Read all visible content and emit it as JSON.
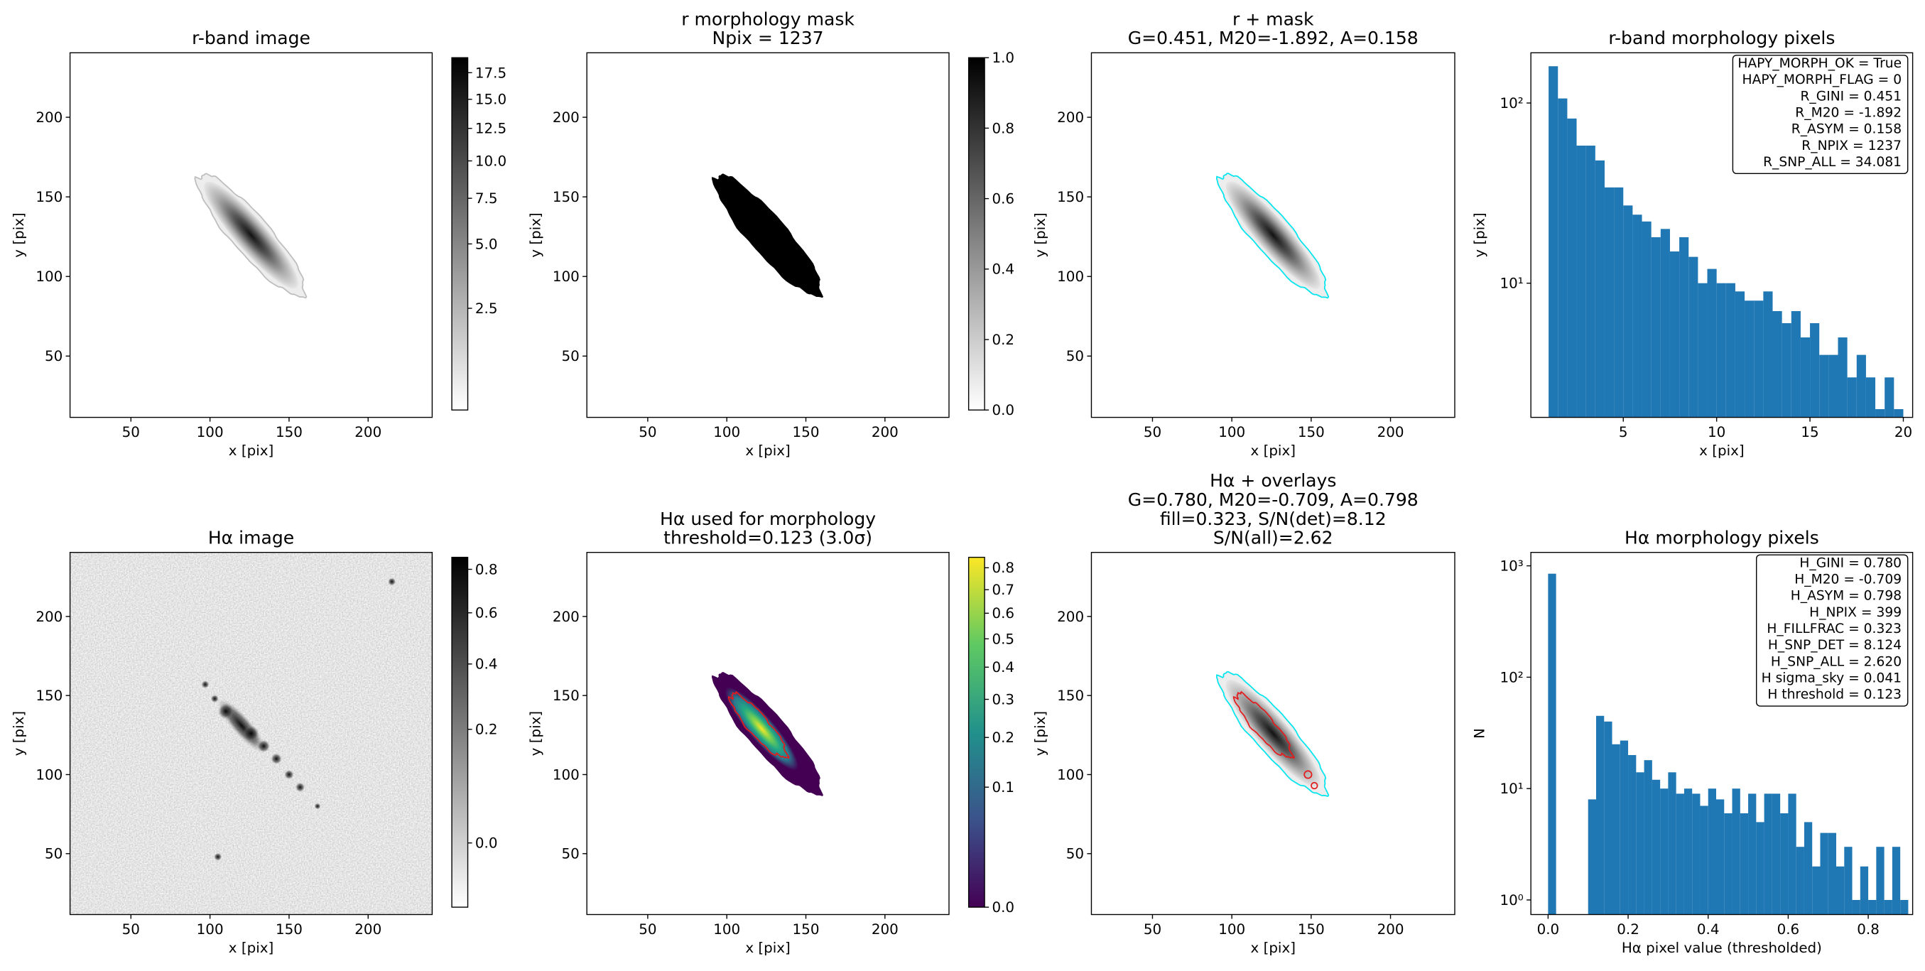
{
  "chart_data": [
    {
      "type": "image",
      "title": [
        "r-band image"
      ],
      "xlabel": "x [pix]",
      "ylabel": "y [pix]",
      "xlim": [
        11.5,
        240.5
      ],
      "ylim": [
        11.5,
        240.5
      ],
      "xticks": [
        50,
        100,
        150,
        200
      ],
      "yticks": [
        50,
        100,
        150,
        200
      ],
      "colorbar": {
        "cmap": "gray_r",
        "scale": "sqrt",
        "clim": [
          1,
          19
        ],
        "ticks": [
          2.5,
          {
            "value": 5,
            "label": "5.0"
          },
          7.5,
          {
            "value": 10,
            "label": "10.0"
          },
          12.5,
          {
            "value": 15,
            "label": "15.0"
          },
          17.5
        ]
      }
    },
    {
      "type": "image",
      "title": [
        "r morphology mask",
        "Npix = 1237"
      ],
      "xlabel": "x [pix]",
      "ylabel": "y [pix]",
      "xlim": [
        11.5,
        240.5
      ],
      "ylim": [
        11.5,
        240.5
      ],
      "xticks": [
        50,
        100,
        150,
        200
      ],
      "yticks": [
        50,
        100,
        150,
        200
      ],
      "colorbar": {
        "cmap": "gray_r",
        "scale": "linear",
        "clim": [
          0,
          1
        ],
        "ticks": [
          {
            "value": 0,
            "label": "0.0"
          },
          0.2,
          0.4,
          0.6,
          0.8,
          {
            "value": 1,
            "label": "1.0"
          }
        ]
      }
    },
    {
      "type": "image",
      "title": [
        "r + mask",
        "G=0.451, M20=-1.892, A=0.158"
      ],
      "xlabel": "x [pix]",
      "ylabel": "y [pix]",
      "xlim": [
        11.5,
        240.5
      ],
      "ylim": [
        11.5,
        240.5
      ],
      "xticks": [
        50,
        100,
        150,
        200
      ],
      "yticks": [
        50,
        100,
        150,
        200
      ]
    },
    {
      "type": "histogram",
      "title": [
        "r-band morphology pixels"
      ],
      "xlabel": "x [pix]",
      "ylabel": "y [pix]",
      "bins": [
        1,
        1.5,
        2,
        2.5,
        3,
        3.5,
        4,
        4.5,
        5,
        5.5,
        6,
        6.5,
        7,
        7.5,
        8,
        8.5,
        9,
        9.5,
        10,
        10.5,
        11,
        11.5,
        12,
        12.5,
        13,
        13.5,
        14,
        14.5,
        15,
        15.5,
        16,
        16.5,
        17,
        17.5,
        18,
        18.5,
        19,
        19.5,
        20
      ],
      "values": [
        160,
        106,
        82,
        58,
        58,
        48,
        34,
        34,
        27,
        24,
        22,
        18,
        20,
        15,
        18,
        14,
        10,
        12,
        10,
        10,
        9,
        8,
        8,
        9,
        7,
        6,
        7,
        5,
        6,
        4,
        4,
        5,
        3,
        4,
        3,
        2,
        3,
        2
      ],
      "color": "#1f77b4",
      "log_y": true,
      "xlim": [
        0.05,
        20.5
      ],
      "ylim": [
        1.8,
        190
      ],
      "xticks": [
        5,
        10,
        15,
        20
      ],
      "yticks": [
        {
          "value": 10,
          "label": "10¹"
        },
        {
          "value": 100,
          "label": "10²"
        }
      ],
      "annotation": [
        "HAPY_MORPH_OK = True",
        "HAPY_MORPH_FLAG = 0",
        "R_GINI = 0.451",
        "R_M20 = -1.892",
        "R_ASYM = 0.158",
        "R_NPIX = 1237",
        "R_SNP_ALL = 34.081"
      ]
    },
    {
      "type": "image",
      "title": [
        "Hα image"
      ],
      "xlabel": "x [pix]",
      "ylabel": "y [pix]",
      "xlim": [
        11.5,
        240.5
      ],
      "ylim": [
        11.5,
        240.5
      ],
      "xticks": [
        50,
        100,
        150,
        200
      ],
      "yticks": [
        50,
        100,
        150,
        200
      ],
      "colorbar": {
        "cmap": "gray_r",
        "scale": "sqrt",
        "clim": [
          -0.03,
          0.86
        ],
        "ticks": [
          {
            "value": 0,
            "label": "0.0"
          },
          0.2,
          0.4,
          0.6,
          0.8
        ]
      }
    },
    {
      "type": "image",
      "title": [
        "Hα used for morphology",
        "threshold=0.123 (3.0σ)"
      ],
      "xlabel": "x [pix]",
      "ylabel": "y [pix]",
      "xlim": [
        11.5,
        240.5
      ],
      "ylim": [
        11.5,
        240.5
      ],
      "xticks": [
        50,
        100,
        150,
        200
      ],
      "yticks": [
        50,
        100,
        150,
        200
      ],
      "colorbar": {
        "cmap": "viridis",
        "scale": "sqrt",
        "clim": [
          0,
          0.85
        ],
        "ticks": [
          {
            "value": 0,
            "label": "0.0"
          },
          0.1,
          0.2,
          0.3,
          0.4,
          0.5,
          0.6,
          0.7,
          0.8
        ]
      }
    },
    {
      "type": "image",
      "title": [
        "Hα + overlays",
        "G=0.780, M20=-0.709, A=0.798",
        "fill=0.323, S/N(det)=8.12",
        "S/N(all)=2.62"
      ],
      "xlabel": "x [pix]",
      "ylabel": "y [pix]",
      "xlim": [
        11.5,
        240.5
      ],
      "ylim": [
        11.5,
        240.5
      ],
      "xticks": [
        50,
        100,
        150,
        200
      ],
      "yticks": [
        50,
        100,
        150,
        200
      ]
    },
    {
      "type": "histogram",
      "title": [
        "Hα morphology pixels"
      ],
      "xlabel": "Hα pixel value (thresholded)",
      "ylabel": "N",
      "bins": [
        0,
        0.02,
        0.04,
        0.06,
        0.08,
        0.1,
        0.12,
        0.14,
        0.16,
        0.18,
        0.2,
        0.22,
        0.24,
        0.26,
        0.28,
        0.3,
        0.32,
        0.34,
        0.36,
        0.38,
        0.4,
        0.42,
        0.44,
        0.46,
        0.48,
        0.5,
        0.52,
        0.54,
        0.56,
        0.58,
        0.6,
        0.62,
        0.64,
        0.66,
        0.68,
        0.7,
        0.72,
        0.74,
        0.76,
        0.78,
        0.8,
        0.82,
        0.84,
        0.86,
        0.88,
        0.9
      ],
      "values": [
        850,
        0,
        0,
        0,
        0,
        8,
        45,
        40,
        25,
        27,
        20,
        14,
        18,
        12,
        10,
        14,
        9,
        10,
        9,
        7,
        10,
        8,
        6,
        10,
        6,
        9,
        5,
        9,
        9,
        6,
        9,
        3,
        5,
        2,
        4,
        4,
        2,
        3,
        1,
        2,
        1,
        3,
        1,
        3,
        1
      ],
      "color": "#1f77b4",
      "log_y": true,
      "xlim": [
        -0.043,
        0.911
      ],
      "ylim": [
        0.74,
        1320
      ],
      "xticks": [
        {
          "value": 0,
          "label": "0.0"
        },
        0.2,
        0.4,
        0.6,
        0.8
      ],
      "yticks": [
        {
          "value": 1,
          "label": "10⁰"
        },
        {
          "value": 10,
          "label": "10¹"
        },
        {
          "value": 100,
          "label": "10²"
        },
        {
          "value": 1000,
          "label": "10³"
        }
      ],
      "annotation": [
        "H_GINI = 0.780",
        "H_M20 = -0.709",
        "H_ASYM = 0.798",
        "H_NPIX = 399",
        "H_FILLFRAC = 0.323",
        "H_SNP_DET = 8.124",
        "H_SNP_ALL = 2.620",
        "H sigma_sky = 0.041",
        "H threshold = 0.123"
      ]
    }
  ]
}
